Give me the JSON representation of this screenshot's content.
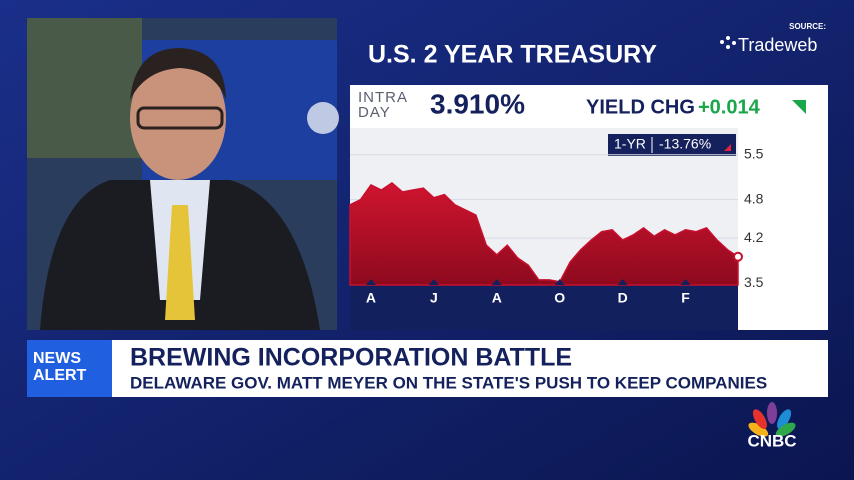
{
  "header": {
    "title": "U.S. 2 YEAR TREASURY",
    "source_label": "SOURCE:",
    "source": "Tradeweb"
  },
  "quote": {
    "label": "INTRA DAY",
    "yield": "3.910%",
    "change_label": "YIELD CHG",
    "change": "+0.014",
    "period": "1-YR",
    "period_change": "-13.76%"
  },
  "chart_data": {
    "type": "area",
    "x": [
      0,
      1,
      2,
      3,
      4,
      5,
      6,
      7,
      8,
      9,
      10,
      11,
      12,
      13,
      14,
      15,
      16,
      17,
      18,
      19,
      20,
      21,
      22,
      23,
      24,
      25,
      26,
      27,
      28,
      29,
      30,
      31,
      32,
      33,
      34,
      35,
      36,
      37
    ],
    "values": [
      4.72,
      4.8,
      5.03,
      4.95,
      5.06,
      4.92,
      4.95,
      4.98,
      4.83,
      4.88,
      4.72,
      4.64,
      4.56,
      4.09,
      3.94,
      4.09,
      3.89,
      3.78,
      3.55,
      3.55,
      3.52,
      3.83,
      4.02,
      4.17,
      4.3,
      4.33,
      4.17,
      4.25,
      4.36,
      4.23,
      4.33,
      4.25,
      4.33,
      4.3,
      4.36,
      4.17,
      4.02,
      3.91
    ],
    "color": "#c8102e",
    "xlim": [
      0,
      37
    ],
    "xticks": [
      {
        "value": 2,
        "label": "A"
      },
      {
        "value": 8,
        "label": "J"
      },
      {
        "value": 14,
        "label": "A"
      },
      {
        "value": 20,
        "label": "O"
      },
      {
        "value": 26,
        "label": "D"
      },
      {
        "value": 32,
        "label": "F"
      }
    ],
    "ylim": [
      3.47,
      5.73
    ],
    "yticks": [
      5.5,
      4.8,
      4.2,
      3.5
    ],
    "grid": true
  },
  "banner": {
    "tag": "NEWS ALERT",
    "headline": "BREWING INCORPORATION BATTLE",
    "subhead": "DELAWARE GOV. MATT MEYER ON THE STATE'S PUSH TO KEEP COMPANIES"
  },
  "network": "CNBC"
}
